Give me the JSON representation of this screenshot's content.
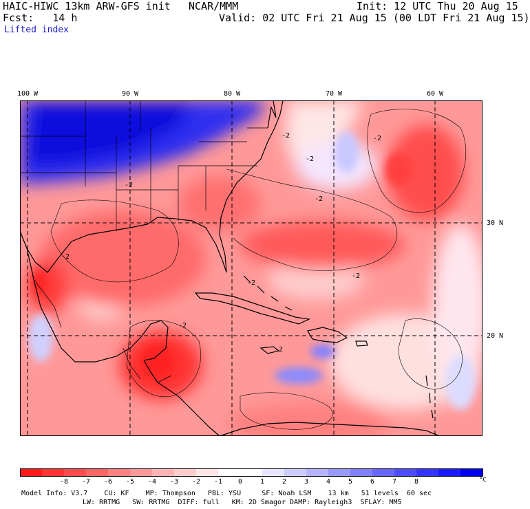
{
  "header": {
    "model": "HAIC-HIWC 13km ARW-GFS init",
    "org": "NCAR/MMM",
    "fcst": "Fcst:   14 h",
    "init": "Init: 12 UTC Thu 20 Aug 15",
    "valid": "Valid: 02 UTC Fri 21 Aug 15 (00 LDT Fri 21 Aug 15)",
    "field": "Lifted index"
  },
  "map": {
    "lon_labels": [
      "100 W",
      "90 W",
      "80 W",
      "70 W",
      "60 W"
    ],
    "lat_labels": [
      "30 N",
      "20 N"
    ],
    "contour_labels": [
      "-2",
      "-2",
      "-2",
      "-2",
      "-2",
      "-2",
      "-2",
      "-2",
      "-2",
      "-2"
    ]
  },
  "colorbar": {
    "colors": [
      "#ff1a1a",
      "#ff3333",
      "#ff4d4d",
      "#ff6666",
      "#ff8080",
      "#ff9999",
      "#ffb3b3",
      "#ffcccc",
      "#ffe6e6",
      "#ffffff",
      "#ffffff",
      "#e6e6ff",
      "#ccccff",
      "#b3b3ff",
      "#9999ff",
      "#8080ff",
      "#6666ff",
      "#4d4dff",
      "#3333ff",
      "#1a1aff",
      "#0000ee"
    ],
    "labels": [
      "-8",
      "-7",
      "-6",
      "-5",
      "-4",
      "-3",
      "-2",
      "-1",
      "0",
      "1",
      "2",
      "3",
      "4",
      "5",
      "6",
      "7",
      "8"
    ],
    "unit": "°C"
  },
  "footer": {
    "line1": "Model Info: V3.7    CU: KF    MP: Thompson   PBL: YSU     SF: Noah LSM    13 km   51 levels  60 sec",
    "line2": "LW: RRTMG   SW: RRTMG  DIFF: full   KM: 2D Smagor DAMP: Rayleigh3  SFLAY: MM5"
  }
}
